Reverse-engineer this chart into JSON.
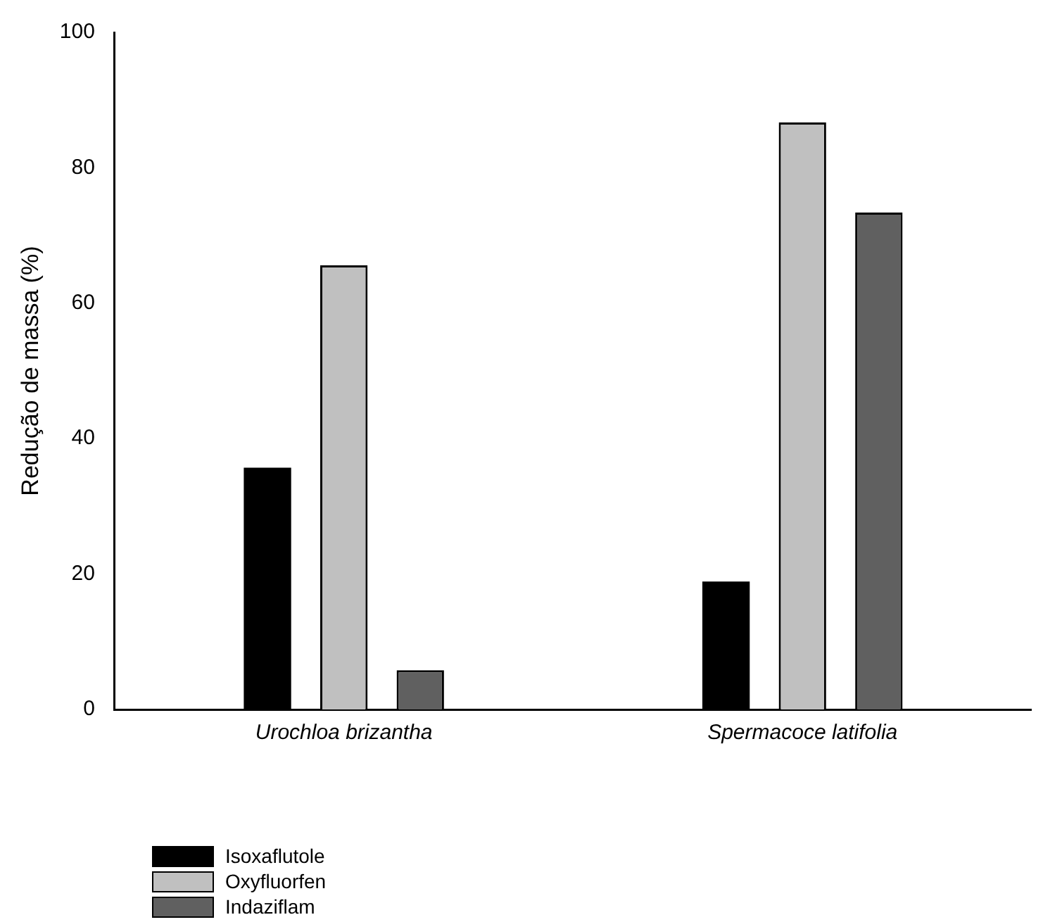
{
  "chart_data": {
    "type": "bar",
    "ylabel": "Redução de massa (%)",
    "categories": [
      "Urochloa brizantha",
      "Spermacoce latifolia"
    ],
    "series": [
      {
        "name": "Isoxaflutole",
        "color": "#000000",
        "values": [
          35.7,
          18.9
        ]
      },
      {
        "name": "Oxyfluorfen",
        "color": "#c0c0c0",
        "values": [
          65.6,
          86.7
        ]
      },
      {
        "name": "Indaziflam",
        "color": "#606060",
        "values": [
          5.8,
          73.4
        ]
      }
    ],
    "ylim": [
      0,
      100
    ],
    "yticks": [
      0,
      20,
      40,
      60,
      80,
      100
    ],
    "grid": false,
    "legend": "bottom left"
  }
}
